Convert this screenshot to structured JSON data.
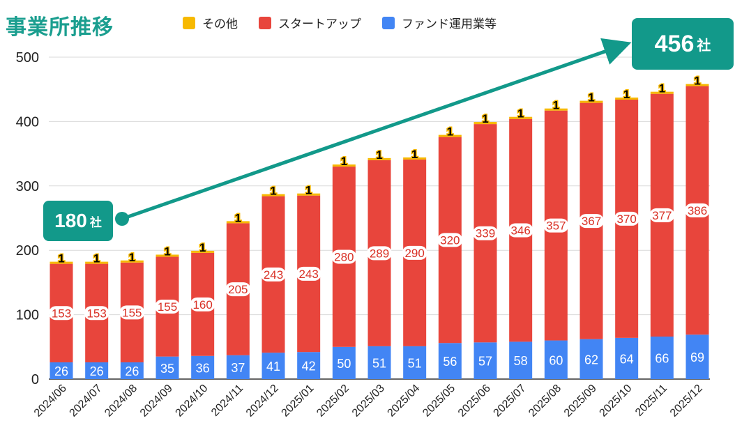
{
  "title": "事業所推移",
  "colors": {
    "other": "#f7b900",
    "startup": "#e8453c",
    "fund": "#4285f4",
    "accent": "#12998a",
    "grid": "#d9d9d9"
  },
  "callouts": {
    "start": {
      "value": "180",
      "unit": "社"
    },
    "end": {
      "value": "456",
      "unit": "社"
    }
  },
  "chart_data": {
    "type": "bar",
    "stacked": true,
    "title": "事業所推移",
    "categories": [
      "2024/06",
      "2024/07",
      "2024/08",
      "2024/09",
      "2024/10",
      "2024/11",
      "2024/12",
      "2025/01",
      "2025/02",
      "2025/03",
      "2025/04",
      "2025/05",
      "2025/06",
      "2025/07",
      "2025/08",
      "2025/09",
      "2025/10",
      "2025/11",
      "2025/12"
    ],
    "series": [
      {
        "name": "ファンド運用業等",
        "color": "#4285f4",
        "values": [
          26,
          26,
          26,
          35,
          36,
          37,
          41,
          42,
          50,
          51,
          51,
          56,
          57,
          58,
          60,
          62,
          64,
          66,
          69
        ]
      },
      {
        "name": "スタートアップ",
        "color": "#e8453c",
        "values": [
          153,
          153,
          155,
          155,
          160,
          205,
          243,
          243,
          280,
          289,
          290,
          320,
          339,
          346,
          357,
          367,
          370,
          377,
          386
        ]
      },
      {
        "name": "その他",
        "color": "#f7b900",
        "values": [
          1,
          1,
          1,
          1,
          1,
          1,
          1,
          1,
          1,
          1,
          1,
          1,
          1,
          1,
          1,
          1,
          1,
          1,
          1
        ]
      }
    ],
    "legend_order": [
      "その他",
      "スタートアップ",
      "ファンド運用業等"
    ],
    "ylim": [
      0,
      500
    ],
    "yticks": [
      0,
      100,
      200,
      300,
      400,
      500
    ],
    "grid": true,
    "legend_position": "top",
    "trend_annotation": {
      "from": "180 社",
      "to": "456 社"
    }
  }
}
